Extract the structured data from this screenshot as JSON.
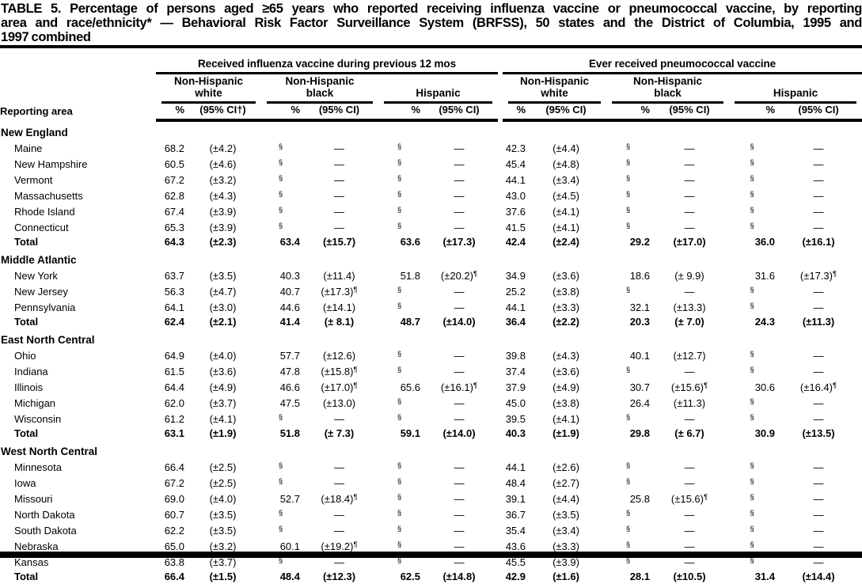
{
  "title": {
    "lines": [
      "TABLE 5. Percentage of persons aged ≥65 years who reported receiving influenza vaccine or pneumococcal vaccine, by reporting",
      "area and race/ethnicity* — Behavioral Risk Factor Surveillance System (BRFSS), 50 states and the District of Columbia, 1995 and",
      "1997 combined"
    ]
  },
  "header": {
    "reporting_area_label": "Reporting area",
    "groups": [
      {
        "label": "Received influenza vaccine during previous 12 mos",
        "subgroups": [
          {
            "line1": "Non-Hispanic",
            "line2": "white",
            "pct": "%",
            "ci": "(95% CI†)"
          },
          {
            "line1": "Non-Hispanic",
            "line2": "black",
            "pct": "%",
            "ci": "(95% CI)"
          },
          {
            "line1": "Hispanic",
            "line2": "",
            "pct": "%",
            "ci": "(95% CI)"
          }
        ]
      },
      {
        "label": "Ever received pneumococcal vaccine",
        "subgroups": [
          {
            "line1": "Non-Hispanic",
            "line2": "white",
            "pct": "%",
            "ci": "(95% CI)"
          },
          {
            "line1": "Non-Hispanic",
            "line2": "black",
            "pct": "%",
            "ci": "(95% CI)"
          },
          {
            "line1": "Hispanic",
            "line2": "",
            "pct": "%",
            "ci": "(95% CI)"
          }
        ]
      }
    ]
  },
  "footnote_symbols": {
    "suppressed": "§",
    "unreliable": "¶",
    "no_data": "—"
  },
  "sections": [
    {
      "name": "New England",
      "rows": [
        {
          "area": "Maine",
          "total": false,
          "cells": [
            "68.2",
            "(±4.2)",
            "§",
            "—",
            "§",
            "—",
            "42.3",
            "(±4.4)",
            "§",
            "—",
            "§",
            "—"
          ]
        },
        {
          "area": "New Hampshire",
          "total": false,
          "cells": [
            "60.5",
            "(±4.6)",
            "§",
            "—",
            "§",
            "—",
            "45.4",
            "(±4.8)",
            "§",
            "—",
            "§",
            "—"
          ]
        },
        {
          "area": "Vermont",
          "total": false,
          "cells": [
            "67.2",
            "(±3.2)",
            "§",
            "—",
            "§",
            "—",
            "44.1",
            "(±3.4)",
            "§",
            "—",
            "§",
            "—"
          ]
        },
        {
          "area": "Massachusetts",
          "total": false,
          "cells": [
            "62.8",
            "(±4.3)",
            "§",
            "—",
            "§",
            "—",
            "43.0",
            "(±4.5)",
            "§",
            "—",
            "§",
            "—"
          ]
        },
        {
          "area": "Rhode Island",
          "total": false,
          "cells": [
            "67.4",
            "(±3.9)",
            "§",
            "—",
            "§",
            "—",
            "37.6",
            "(±4.1)",
            "§",
            "—",
            "§",
            "—"
          ]
        },
        {
          "area": "Connecticut",
          "total": false,
          "cells": [
            "65.3",
            "(±3.9)",
            "§",
            "—",
            "§",
            "—",
            "41.5",
            "(±4.1)",
            "§",
            "—",
            "§",
            "—"
          ]
        },
        {
          "area": "Total",
          "total": true,
          "cells": [
            "64.3",
            "(±2.3)",
            "63.4",
            "(±15.7)",
            "63.6",
            "(±17.3)",
            "42.4",
            "(±2.4)",
            "29.2",
            "(±17.0)",
            "36.0",
            "(±16.1)"
          ]
        }
      ]
    },
    {
      "name": "Middle Atlantic",
      "rows": [
        {
          "area": "New York",
          "total": false,
          "cells": [
            "63.7",
            "(±3.5)",
            "40.3",
            "(±11.4)",
            "51.8",
            "(±20.2)¶",
            "34.9",
            "(±3.6)",
            "18.6",
            "(± 9.9)",
            "31.6",
            "(±17.3)¶"
          ]
        },
        {
          "area": "New Jersey",
          "total": false,
          "cells": [
            "56.3",
            "(±4.7)",
            "40.7",
            "(±17.3)¶",
            "§",
            "—",
            "25.2",
            "(±3.8)",
            "§",
            "—",
            "§",
            "—"
          ]
        },
        {
          "area": "Pennsylvania",
          "total": false,
          "cells": [
            "64.1",
            "(±3.0)",
            "44.6",
            "(±14.1)",
            "§",
            "—",
            "44.1",
            "(±3.3)",
            "32.1",
            "(±13.3)",
            "§",
            "—"
          ]
        },
        {
          "area": "Total",
          "total": true,
          "cells": [
            "62.4",
            "(±2.1)",
            "41.4",
            "(± 8.1)",
            "48.7",
            "(±14.0)",
            "36.4",
            "(±2.2)",
            "20.3",
            "(± 7.0)",
            "24.3",
            "(±11.3)"
          ]
        }
      ]
    },
    {
      "name": "East North Central",
      "rows": [
        {
          "area": "Ohio",
          "total": false,
          "cells": [
            "64.9",
            "(±4.0)",
            "57.7",
            "(±12.6)",
            "§",
            "—",
            "39.8",
            "(±4.3)",
            "40.1",
            "(±12.7)",
            "§",
            "—"
          ]
        },
        {
          "area": "Indiana",
          "total": false,
          "cells": [
            "61.5",
            "(±3.6)",
            "47.8",
            "(±15.8)¶",
            "§",
            "—",
            "37.4",
            "(±3.6)",
            "§",
            "—",
            "§",
            "—"
          ]
        },
        {
          "area": "Illinois",
          "total": false,
          "cells": [
            "64.4",
            "(±4.9)",
            "46.6",
            "(±17.0)¶",
            "65.6",
            "(±16.1)¶",
            "37.9",
            "(±4.9)",
            "30.7",
            "(±15.6)¶",
            "30.6",
            "(±16.4)¶"
          ]
        },
        {
          "area": "Michigan",
          "total": false,
          "cells": [
            "62.0",
            "(±3.7)",
            "47.5",
            "(±13.0)",
            "§",
            "—",
            "45.0",
            "(±3.8)",
            "26.4",
            "(±11.3)",
            "§",
            "—"
          ]
        },
        {
          "area": "Wisconsin",
          "total": false,
          "cells": [
            "61.2",
            "(±4.1)",
            "§",
            "—",
            "§",
            "—",
            "39.5",
            "(±4.1)",
            "§",
            "—",
            "§",
            "—"
          ]
        },
        {
          "area": "Total",
          "total": true,
          "cells": [
            "63.1",
            "(±1.9)",
            "51.8",
            "(± 7.3)",
            "59.1",
            "(±14.0)",
            "40.3",
            "(±1.9)",
            "29.8",
            "(± 6.7)",
            "30.9",
            "(±13.5)"
          ]
        }
      ]
    },
    {
      "name": "West North Central",
      "rows": [
        {
          "area": "Minnesota",
          "total": false,
          "cells": [
            "66.4",
            "(±2.5)",
            "§",
            "—",
            "§",
            "—",
            "44.1",
            "(±2.6)",
            "§",
            "—",
            "§",
            "—"
          ]
        },
        {
          "area": "Iowa",
          "total": false,
          "cells": [
            "67.2",
            "(±2.5)",
            "§",
            "—",
            "§",
            "—",
            "48.4",
            "(±2.7)",
            "§",
            "—",
            "§",
            "—"
          ]
        },
        {
          "area": "Missouri",
          "total": false,
          "cells": [
            "69.0",
            "(±4.0)",
            "52.7",
            "(±18.4)¶",
            "§",
            "—",
            "39.1",
            "(±4.4)",
            "25.8",
            "(±15.6)¶",
            "§",
            "—"
          ]
        },
        {
          "area": "North Dakota",
          "total": false,
          "cells": [
            "60.7",
            "(±3.5)",
            "§",
            "—",
            "§",
            "—",
            "36.7",
            "(±3.5)",
            "§",
            "—",
            "§",
            "—"
          ]
        },
        {
          "area": "South Dakota",
          "total": false,
          "cells": [
            "62.2",
            "(±3.5)",
            "§",
            "—",
            "§",
            "—",
            "35.4",
            "(±3.4)",
            "§",
            "—",
            "§",
            "—"
          ]
        },
        {
          "area": "Nebraska",
          "total": false,
          "cells": [
            "65.0",
            "(±3.2)",
            "60.1",
            "(±19.2)¶",
            "§",
            "—",
            "43.6",
            "(±3.3)",
            "§",
            "—",
            "§",
            "—"
          ]
        },
        {
          "area": "Kansas",
          "total": false,
          "cells": [
            "63.8",
            "(±3.7)",
            "§",
            "—",
            "§",
            "—",
            "45.5",
            "(±3.9)",
            "§",
            "—",
            "§",
            "—"
          ]
        },
        {
          "area": "Total",
          "total": true,
          "cells": [
            "66.4",
            "(±1.5)",
            "48.4",
            "(±12.3)",
            "62.5",
            "(±14.8)",
            "42.9",
            "(±1.6)",
            "28.1",
            "(±10.5)",
            "31.4",
            "(±14.4)"
          ]
        }
      ]
    }
  ]
}
